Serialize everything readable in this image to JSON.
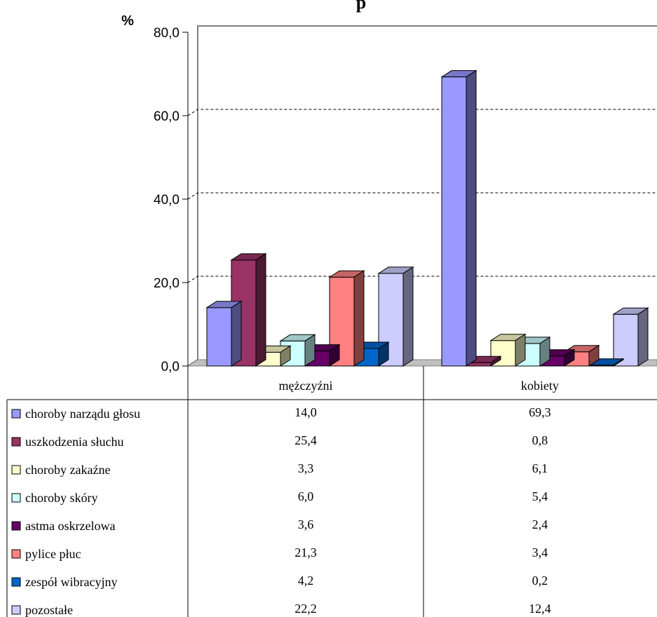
{
  "chart_data": {
    "type": "bar",
    "title": "p",
    "ylabel": "%",
    "ylim": [
      0,
      80
    ],
    "yticks": [
      "0,0",
      "20,0",
      "40,0",
      "60,0",
      "80,0"
    ],
    "grid": true,
    "categories": [
      "mężczyźni",
      "kobiety"
    ],
    "series": [
      {
        "name": "choroby narządu głosu",
        "color": "#9999ff",
        "values": [
          14.0,
          69.3
        ],
        "labels": [
          "14,0",
          "69,3"
        ]
      },
      {
        "name": "uszkodzenia słuchu",
        "color": "#993366",
        "values": [
          25.4,
          0.8
        ],
        "labels": [
          "25,4",
          "0,8"
        ]
      },
      {
        "name": "choroby zakaźne",
        "color": "#ffffcc",
        "values": [
          3.3,
          6.1
        ],
        "labels": [
          "3,3",
          "6,1"
        ]
      },
      {
        "name": "choroby skóry",
        "color": "#ccffff",
        "values": [
          6.0,
          5.4
        ],
        "labels": [
          "6,0",
          "5,4"
        ]
      },
      {
        "name": "astma oskrzelowa",
        "color": "#660066",
        "values": [
          3.6,
          2.4
        ],
        "labels": [
          "3,6",
          "2,4"
        ]
      },
      {
        "name": "pylice płuc",
        "color": "#ff8080",
        "values": [
          21.3,
          3.4
        ],
        "labels": [
          "21,3",
          "3,4"
        ]
      },
      {
        "name": "zespół wibracyjny",
        "color": "#0066cc",
        "values": [
          4.2,
          0.2
        ],
        "labels": [
          "4,2",
          "0,2"
        ]
      },
      {
        "name": "pozostałe",
        "color": "#ccccff",
        "values": [
          22.2,
          12.4
        ],
        "labels": [
          "22,2",
          "12,4"
        ]
      }
    ]
  }
}
